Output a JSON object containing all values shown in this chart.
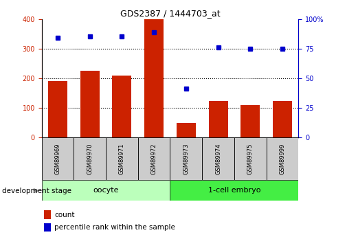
{
  "title": "GDS2387 / 1444703_at",
  "samples": [
    "GSM89969",
    "GSM89970",
    "GSM89971",
    "GSM89972",
    "GSM89973",
    "GSM89974",
    "GSM89975",
    "GSM89999"
  ],
  "counts": [
    190,
    225,
    210,
    400,
    50,
    122,
    110,
    122
  ],
  "percentiles": [
    84,
    85,
    85,
    89,
    41,
    76,
    75,
    75
  ],
  "bar_color": "#cc2200",
  "dot_color": "#0000cc",
  "groups": [
    {
      "label": "oocyte",
      "start": 0,
      "end": 4,
      "color": "#bbffbb"
    },
    {
      "label": "1-cell embryo",
      "start": 4,
      "end": 8,
      "color": "#44ee44"
    }
  ],
  "group_label": "development stage",
  "left_ylim": [
    0,
    400
  ],
  "right_ylim": [
    0,
    100
  ],
  "left_yticks": [
    0,
    100,
    200,
    300,
    400
  ],
  "right_yticks": [
    0,
    25,
    50,
    75,
    100
  ],
  "right_yticklabels": [
    "0",
    "25",
    "50",
    "75",
    "100%"
  ],
  "grid_values": [
    100,
    200,
    300
  ],
  "legend_count_label": "count",
  "legend_pct_label": "percentile rank within the sample",
  "bg_color": "#ffffff",
  "tick_area_color": "#cccccc"
}
